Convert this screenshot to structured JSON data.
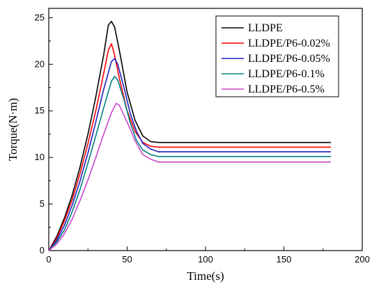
{
  "chart_data": {
    "type": "line",
    "title": "",
    "xlabel": "Time(s)",
    "ylabel": "Torque(N·m)",
    "xlim": [
      0,
      200
    ],
    "ylim": [
      0,
      26
    ],
    "xticks": [
      0,
      50,
      100,
      150,
      200
    ],
    "yticks": [
      0,
      5,
      10,
      15,
      20,
      25
    ],
    "grid": false,
    "legend_position": "top-right",
    "series": [
      {
        "name": "LLDPE",
        "color": "#000000",
        "x": [
          0,
          5,
          10,
          15,
          20,
          25,
          30,
          35,
          38,
          40,
          42,
          45,
          50,
          55,
          60,
          65,
          70,
          80,
          100,
          150,
          180
        ],
        "y": [
          0,
          1.5,
          3.5,
          6.0,
          9.0,
          12.5,
          16.5,
          21.0,
          24.2,
          24.6,
          24.0,
          21.5,
          17.0,
          14.0,
          12.3,
          11.7,
          11.6,
          11.6,
          11.6,
          11.6,
          11.6
        ]
      },
      {
        "name": "LLDPE/P6-0.02%",
        "color": "#ff0000",
        "x": [
          0,
          5,
          10,
          15,
          20,
          25,
          30,
          35,
          38,
          40,
          42,
          45,
          50,
          55,
          60,
          65,
          70,
          80,
          100,
          150,
          180
        ],
        "y": [
          0,
          1.3,
          3.2,
          5.5,
          8.3,
          11.5,
          15.0,
          19.0,
          21.5,
          22.2,
          21.0,
          18.5,
          15.0,
          12.8,
          11.6,
          11.2,
          11.1,
          11.1,
          11.1,
          11.1,
          11.1
        ]
      },
      {
        "name": "LLDPE/P6-0.05%",
        "color": "#1f1fbf",
        "x": [
          0,
          5,
          10,
          15,
          20,
          25,
          30,
          35,
          40,
          42,
          44,
          48,
          52,
          56,
          60,
          65,
          70,
          80,
          100,
          150,
          180
        ],
        "y": [
          0,
          1.1,
          2.7,
          4.9,
          7.5,
          10.5,
          13.8,
          17.3,
          20.3,
          20.6,
          20.0,
          17.5,
          14.7,
          12.8,
          11.5,
          10.9,
          10.6,
          10.6,
          10.6,
          10.6,
          10.6
        ]
      },
      {
        "name": "LLDPE/P6-0.1%",
        "color": "#008080",
        "x": [
          0,
          5,
          10,
          15,
          20,
          25,
          30,
          35,
          40,
          42,
          44,
          48,
          52,
          56,
          60,
          65,
          70,
          80,
          100,
          150,
          180
        ],
        "y": [
          0,
          0.9,
          2.2,
          4.2,
          6.6,
          9.4,
          12.3,
          15.3,
          18.2,
          18.7,
          18.3,
          16.2,
          13.7,
          11.8,
          10.8,
          10.3,
          10.1,
          10.1,
          10.1,
          10.1,
          10.1
        ]
      },
      {
        "name": "LLDPE/P6-0.5%",
        "color": "#cc44cc",
        "x": [
          0,
          5,
          10,
          15,
          20,
          25,
          30,
          35,
          40,
          43,
          45,
          50,
          55,
          60,
          65,
          70,
          80,
          100,
          150,
          180
        ],
        "y": [
          0,
          0.7,
          1.8,
          3.4,
          5.4,
          7.6,
          10.0,
          12.5,
          14.8,
          15.8,
          15.6,
          13.8,
          11.8,
          10.3,
          9.8,
          9.5,
          9.5,
          9.5,
          9.5,
          9.5
        ]
      }
    ]
  }
}
